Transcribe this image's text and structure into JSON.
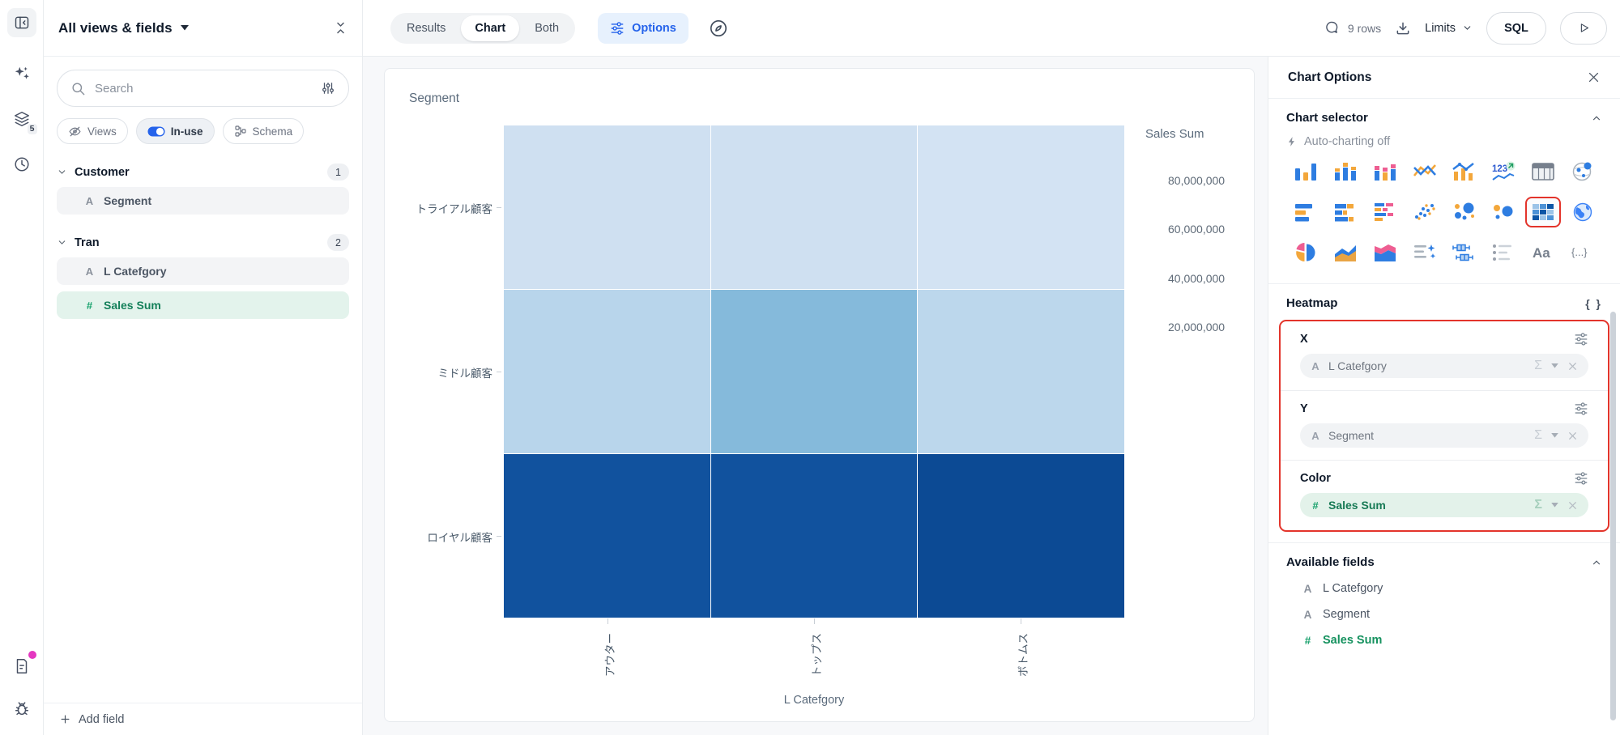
{
  "rail": {
    "layers_badge": "5",
    "icons": [
      "panel-toggle-icon",
      "ai-sparkles-icon",
      "layers-icon",
      "history-clock-icon",
      "notes-document-icon",
      "debug-bug-icon"
    ]
  },
  "left_panel": {
    "title": "All views & fields",
    "search": {
      "placeholder": "Search"
    },
    "chips": [
      {
        "label": "Views",
        "icon": "eye-off-icon"
      },
      {
        "label": "In-use",
        "icon": "toggle-on-icon",
        "active": true
      },
      {
        "label": "Schema",
        "icon": "schema-icon"
      }
    ],
    "groups": [
      {
        "name": "Customer",
        "count": "1",
        "fields": [
          {
            "type": "A",
            "label": "Segment",
            "state": "used"
          }
        ]
      },
      {
        "name": "Tran",
        "count": "2",
        "fields": [
          {
            "type": "A",
            "label": "L Catefgory",
            "state": "used"
          },
          {
            "type": "#",
            "label": "Sales Sum",
            "state": "selected"
          }
        ]
      }
    ],
    "add_field_label": "Add field"
  },
  "toolbar": {
    "view_tabs": [
      {
        "label": "Results",
        "active": false
      },
      {
        "label": "Chart",
        "active": true
      },
      {
        "label": "Both",
        "active": false
      }
    ],
    "options_label": "Options",
    "rows_info": "9 rows",
    "limits_label": "Limits",
    "sql_label": "SQL"
  },
  "chart": {
    "title": "Segment",
    "x_axis": {
      "title": "L Catefgory",
      "labels": [
        "アウター",
        "トップス",
        "ボトムス"
      ]
    },
    "y_axis": {
      "labels": [
        "トライアル顧客",
        "ミドル顧客",
        "ロイヤル顧客"
      ]
    },
    "legend": {
      "title": "Sales Sum",
      "ticks": [
        "80,000,000",
        "60,000,000",
        "40,000,000",
        "20,000,000"
      ]
    },
    "cell_colors": [
      [
        "#cfe0f1",
        "#cfe0f1",
        "#d3e3f3"
      ],
      [
        "#b8d5eb",
        "#85badb",
        "#bcd7ec"
      ],
      [
        "#11529e",
        "#11529e",
        "#0c4a94"
      ]
    ]
  },
  "chart_data": {
    "type": "heatmap",
    "title": "Segment",
    "x": [
      "アウター",
      "トップス",
      "ボトムス"
    ],
    "xlabel": "L Catefgory",
    "y": [
      "トライアル顧客",
      "ミドル顧客",
      "ロイヤル顧客"
    ],
    "ylabel": "Segment",
    "color_label": "Sales Sum",
    "color_scale": {
      "min": 4000000,
      "max": 93000000,
      "ticks": [
        20000000,
        40000000,
        60000000,
        80000000
      ],
      "colors": [
        "#dce9f7",
        "#0a478f"
      ]
    },
    "values_estimated": true,
    "values": [
      [
        20000000,
        20000000,
        19000000
      ],
      [
        33000000,
        46000000,
        32000000
      ],
      [
        82000000,
        82000000,
        88000000
      ]
    ]
  },
  "options_panel": {
    "title": "Chart Options",
    "chart_selector": {
      "title": "Chart selector",
      "auto_charting": "Auto-charting off",
      "selected": "heatmap",
      "icons": [
        "column-chart",
        "stacked-column-chart",
        "grouped-column-chart",
        "line-chart",
        "combo-chart",
        "number-kpi",
        "table",
        "map-bubbles",
        "bar-chart",
        "stacked-bar-chart",
        "grouped-bar-chart",
        "scatter-plot",
        "bubble-chart",
        "dot-plot",
        "heatmap",
        "map-globe",
        "pie-chart",
        "area-chart",
        "stacked-area-chart",
        "text-summary",
        "boxplot",
        "list-chart",
        "text-aa",
        "json-braces"
      ]
    },
    "heatmap_section": {
      "title": "Heatmap",
      "braces_label": "{ }",
      "encodings": [
        {
          "label": "X",
          "field": {
            "type": "A",
            "name": "L Catefgory"
          },
          "highlight": false
        },
        {
          "label": "Y",
          "field": {
            "type": "A",
            "name": "Segment"
          },
          "highlight": false
        },
        {
          "label": "Color",
          "field": {
            "type": "#",
            "name": "Sales Sum"
          },
          "highlight": true
        }
      ]
    },
    "available_fields": {
      "title": "Available fields",
      "fields": [
        {
          "type": "A",
          "name": "L Catefgory",
          "green": false
        },
        {
          "type": "A",
          "name": "Segment",
          "green": false
        },
        {
          "type": "#",
          "name": "Sales Sum",
          "green": true
        }
      ]
    }
  },
  "colors": {
    "accent_blue": "#2563eb",
    "selection_green": "#14805a",
    "annotation_red": "#e3342b",
    "heatmap_dark": "#0c4a94",
    "heatmap_light": "#d3e3f3"
  }
}
